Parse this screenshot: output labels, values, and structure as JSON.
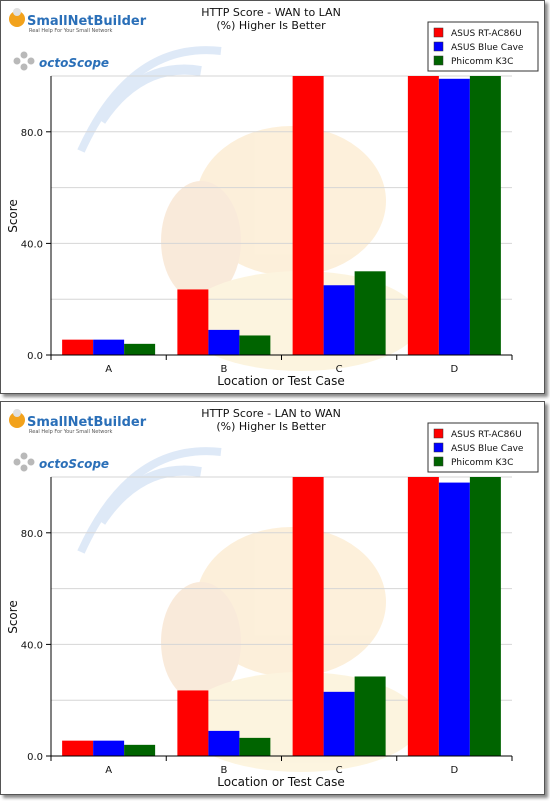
{
  "brand": {
    "logo_text": "SmallNetBuilder",
    "logo_tagline": "Real Help For Your Small Network",
    "sponsor_text": "octoScope"
  },
  "colors": {
    "ASUS RT-AC86U": "#ff0000",
    "ASUS Blue Cave": "#0000ff",
    "Phicomm K3C": "#006400"
  },
  "chart_data": [
    {
      "type": "bar",
      "title": "HTTP Score - WAN to LAN",
      "subtitle": "(%) Higher Is Better",
      "xlabel": "Location or Test Case",
      "ylabel": "Score",
      "ylim": [
        0,
        100
      ],
      "yticks": [
        "0.0",
        "40.0",
        "80.0"
      ],
      "grid": true,
      "legend_position": "top-right",
      "categories": [
        "A",
        "B",
        "C",
        "D"
      ],
      "series": [
        {
          "name": "ASUS RT-AC86U",
          "values": [
            5.5,
            23.5,
            100,
            100
          ]
        },
        {
          "name": "ASUS Blue Cave",
          "values": [
            5.5,
            9,
            25,
            99
          ]
        },
        {
          "name": "Phicomm K3C",
          "values": [
            4,
            7,
            30,
            100
          ]
        }
      ]
    },
    {
      "type": "bar",
      "title": "HTTP Score - LAN to WAN",
      "subtitle": "(%) Higher Is Better",
      "xlabel": "Location or Test Case",
      "ylabel": "Score",
      "ylim": [
        0,
        100
      ],
      "yticks": [
        "0.0",
        "40.0",
        "80.0"
      ],
      "grid": true,
      "legend_position": "top-right",
      "categories": [
        "A",
        "B",
        "C",
        "D"
      ],
      "series": [
        {
          "name": "ASUS RT-AC86U",
          "values": [
            5.5,
            23.5,
            100,
            100
          ]
        },
        {
          "name": "ASUS Blue Cave",
          "values": [
            5.5,
            9,
            23,
            98
          ]
        },
        {
          "name": "Phicomm K3C",
          "values": [
            4,
            6.5,
            28.5,
            100
          ]
        }
      ]
    }
  ]
}
